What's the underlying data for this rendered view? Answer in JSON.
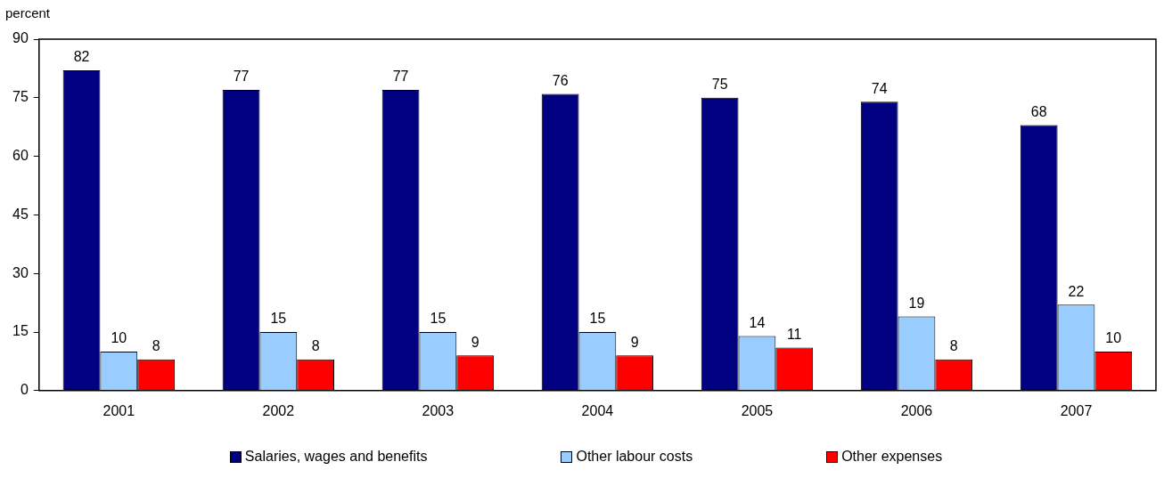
{
  "chart_data": {
    "type": "bar",
    "ylabel": "percent",
    "categories": [
      "2001",
      "2002",
      "2003",
      "2004",
      "2005",
      "2006",
      "2007"
    ],
    "series": [
      {
        "name": "Salaries, wages and benefits",
        "color": "#000080",
        "values": [
          82,
          77,
          77,
          76,
          75,
          74,
          68
        ]
      },
      {
        "name": "Other labour costs",
        "color": "#99ccff",
        "values": [
          10,
          15,
          15,
          15,
          14,
          19,
          22
        ]
      },
      {
        "name": "Other expenses",
        "color": "#ff0000",
        "values": [
          8,
          8,
          9,
          9,
          11,
          8,
          10
        ]
      }
    ],
    "ylim": [
      0,
      90
    ],
    "yticks": [
      0,
      15,
      30,
      45,
      60,
      75,
      90
    ],
    "grid": false,
    "legend": "bottom",
    "data_labels": true
  }
}
